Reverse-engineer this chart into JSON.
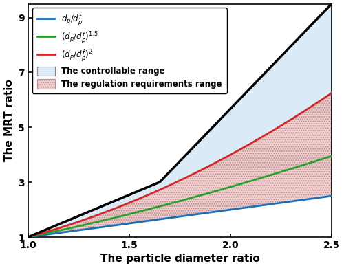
{
  "x_min": 1.0,
  "x_max": 2.5,
  "y_min": 1.0,
  "y_max": 9.5,
  "yticks": [
    1,
    3,
    5,
    7,
    9
  ],
  "xticks": [
    1.0,
    1.5,
    2.0,
    2.5
  ],
  "xlabel": "The particle diameter ratio",
  "ylabel": "The MRT ratio",
  "black_power": 5.0,
  "blue_color": "#1a6fba",
  "green_color": "#2ca02c",
  "red_color": "#d62728",
  "black_color": "#000000",
  "controllable_facecolor": "#daeaf7",
  "controllable_edgecolor": "#aac8e8",
  "regulation_facecolor": "#f0d0d0",
  "regulation_edgecolor": "#c09090",
  "legend_labels_line": [
    "$d_p/d_p^f$",
    "$(d_p/d_p^f)^{1.5}$",
    "$(d_p/d_p^f)^{2}$"
  ],
  "legend_label_controllable": "The controllable range",
  "legend_label_regulation": "The regulation requirements range",
  "figsize": [
    5.0,
    3.9
  ],
  "dpi": 100
}
